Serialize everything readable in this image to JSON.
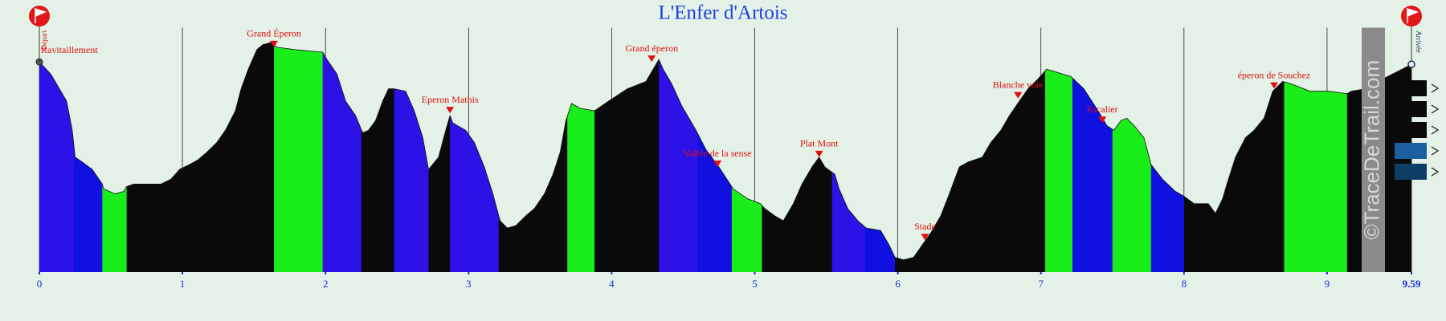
{
  "chart_data": {
    "type": "area",
    "title": "L'Enfer d'Artois",
    "start_label": "Départ",
    "finish_label": "Arrivée",
    "watermark": "©TraceDeTrail.com",
    "xlim": [
      0,
      9.59
    ],
    "xticks": [
      0,
      1,
      2,
      3,
      4,
      5,
      6,
      7,
      8,
      9,
      9.59
    ],
    "ylim": [
      0,
      100
    ],
    "grid": true,
    "x": [
      0,
      0.08,
      0.14,
      0.19,
      0.23,
      0.25,
      0.3,
      0.37,
      0.44,
      0.45,
      0.53,
      0.59,
      0.61,
      0.66,
      0.85,
      0.92,
      0.98,
      1.05,
      1.11,
      1.17,
      1.24,
      1.3,
      1.37,
      1.41,
      1.46,
      1.52,
      1.56,
      1.62,
      1.66,
      1.79,
      1.98,
      2.01,
      2.08,
      2.14,
      2.21,
      2.26,
      2.3,
      2.35,
      2.4,
      2.44,
      2.48,
      2.56,
      2.62,
      2.68,
      2.72,
      2.79,
      2.84,
      2.87,
      2.89,
      2.98,
      3.04,
      3.11,
      3.17,
      3.22,
      3.27,
      3.33,
      3.4,
      3.46,
      3.53,
      3.59,
      3.64,
      3.68,
      3.72,
      3.78,
      3.88,
      3.98,
      4.11,
      4.24,
      4.3,
      4.33,
      4.36,
      4.42,
      4.49,
      4.59,
      4.66,
      4.75,
      4.85,
      4.95,
      5.04,
      5.07,
      5.14,
      5.2,
      5.27,
      5.33,
      5.4,
      5.45,
      5.49,
      5.56,
      5.59,
      5.65,
      5.72,
      5.78,
      5.88,
      5.94,
      5.98,
      6.04,
      6.11,
      6.17,
      6.23,
      6.3,
      6.36,
      6.43,
      6.49,
      6.59,
      6.65,
      6.72,
      6.78,
      6.85,
      6.91,
      6.98,
      7.04,
      7.21,
      7.3,
      7.4,
      7.46,
      7.51,
      7.56,
      7.6,
      7.65,
      7.72,
      7.77,
      7.85,
      7.94,
      8.0,
      8.07,
      8.17,
      8.22,
      8.27,
      8.3,
      8.36,
      8.43,
      8.49,
      8.56,
      8.62,
      8.69,
      8.75,
      8.88,
      9.01,
      9.14,
      9.17,
      9.27,
      9.39,
      9.59
    ],
    "values": [
      86,
      81,
      75,
      70,
      58,
      47,
      45,
      42,
      36,
      34,
      32,
      33,
      35,
      36,
      36,
      38,
      42,
      44,
      46,
      49,
      53,
      58,
      66,
      75,
      83,
      91,
      93,
      94,
      92,
      91,
      90,
      87,
      81,
      70,
      64,
      57,
      58,
      62,
      70,
      75,
      75,
      74,
      66,
      55,
      42,
      47,
      58,
      64,
      61,
      58,
      53,
      43,
      32,
      21,
      18,
      19,
      23,
      26,
      32,
      40,
      49,
      62,
      69,
      67,
      66,
      70,
      75,
      78,
      84,
      87,
      83,
      77,
      68,
      58,
      50,
      43,
      34,
      30,
      28,
      26,
      23,
      21,
      28,
      36,
      43,
      47,
      43,
      40,
      34,
      26,
      21,
      18,
      17,
      11,
      6,
      5,
      6,
      11,
      16,
      23,
      32,
      43,
      45,
      47,
      53,
      58,
      64,
      70,
      75,
      79,
      83,
      80,
      75,
      66,
      60,
      58,
      62,
      63,
      60,
      55,
      44,
      38,
      33,
      31,
      28,
      28,
      24,
      30,
      36,
      47,
      55,
      58,
      63,
      74,
      78,
      77,
      74,
      74,
      73,
      74,
      75,
      79,
      85
    ],
    "segments": [
      {
        "color": "#2d12e8",
        "from": 0,
        "to": 0.24
      },
      {
        "color": "#1010e0",
        "from": 0.24,
        "to": 0.44
      },
      {
        "color": "#1aee1a",
        "from": 0.44,
        "to": 0.61
      },
      {
        "color": "#0a0a0a",
        "from": 0.61,
        "to": 1.64
      },
      {
        "color": "#1aee1a",
        "from": 1.64,
        "to": 1.98
      },
      {
        "color": "#2d12e8",
        "from": 1.98,
        "to": 2.25
      },
      {
        "color": "#0a0a0a",
        "from": 2.25,
        "to": 2.48
      },
      {
        "color": "#2d12e8",
        "from": 2.48,
        "to": 2.72
      },
      {
        "color": "#0a0a0a",
        "from": 2.72,
        "to": 2.87
      },
      {
        "color": "#2d12e8",
        "from": 2.87,
        "to": 3.21
      },
      {
        "color": "#0a0a0a",
        "from": 3.21,
        "to": 3.69
      },
      {
        "color": "#1aee1a",
        "from": 3.69,
        "to": 3.88
      },
      {
        "color": "#0a0a0a",
        "from": 3.88,
        "to": 4.33
      },
      {
        "color": "#2d12e8",
        "from": 4.33,
        "to": 4.6
      },
      {
        "color": "#1010e0",
        "from": 4.6,
        "to": 4.84
      },
      {
        "color": "#1aee1a",
        "from": 4.84,
        "to": 5.05
      },
      {
        "color": "#0a0a0a",
        "from": 5.05,
        "to": 5.54
      },
      {
        "color": "#2d12e8",
        "from": 5.54,
        "to": 5.77
      },
      {
        "color": "#1010e0",
        "from": 5.77,
        "to": 5.98
      },
      {
        "color": "#0a0a0a",
        "from": 5.98,
        "to": 7.03
      },
      {
        "color": "#1aee1a",
        "from": 7.03,
        "to": 7.22
      },
      {
        "color": "#1010e0",
        "from": 7.22,
        "to": 7.5
      },
      {
        "color": "#1aee1a",
        "from": 7.5,
        "to": 7.77
      },
      {
        "color": "#1010e0",
        "from": 7.77,
        "to": 8.0
      },
      {
        "color": "#0a0a0a",
        "from": 8.0,
        "to": 8.7
      },
      {
        "color": "#1aee1a",
        "from": 8.7,
        "to": 9.14
      },
      {
        "color": "#0a0a0a",
        "from": 9.14,
        "to": 9.59
      }
    ],
    "annotations": [
      {
        "text": "Ravitaillement",
        "x": 0,
        "y": 86,
        "marker": "circle"
      },
      {
        "text": "Grand Éperon",
        "x": 1.64,
        "y": 92,
        "marker": "triangle"
      },
      {
        "text": "Eperon Mathis",
        "x": 2.87,
        "y": 65,
        "marker": "triangle"
      },
      {
        "text": "Grand éperon",
        "x": 4.28,
        "y": 86,
        "marker": "triangle"
      },
      {
        "text": "Vallée de la sense",
        "x": 4.74,
        "y": 43,
        "marker": "triangle"
      },
      {
        "text": "Plat Mont",
        "x": 5.45,
        "y": 47,
        "marker": "triangle"
      },
      {
        "text": "Stade",
        "x": 6.19,
        "y": 13,
        "marker": "triangle"
      },
      {
        "text": "Blanche voie",
        "x": 6.84,
        "y": 71,
        "marker": "triangle"
      },
      {
        "text": "Escalier",
        "x": 7.43,
        "y": 61,
        "marker": "triangle"
      },
      {
        "text": "éperon de Souchez",
        "x": 8.63,
        "y": 75,
        "marker": "triangle"
      }
    ]
  }
}
